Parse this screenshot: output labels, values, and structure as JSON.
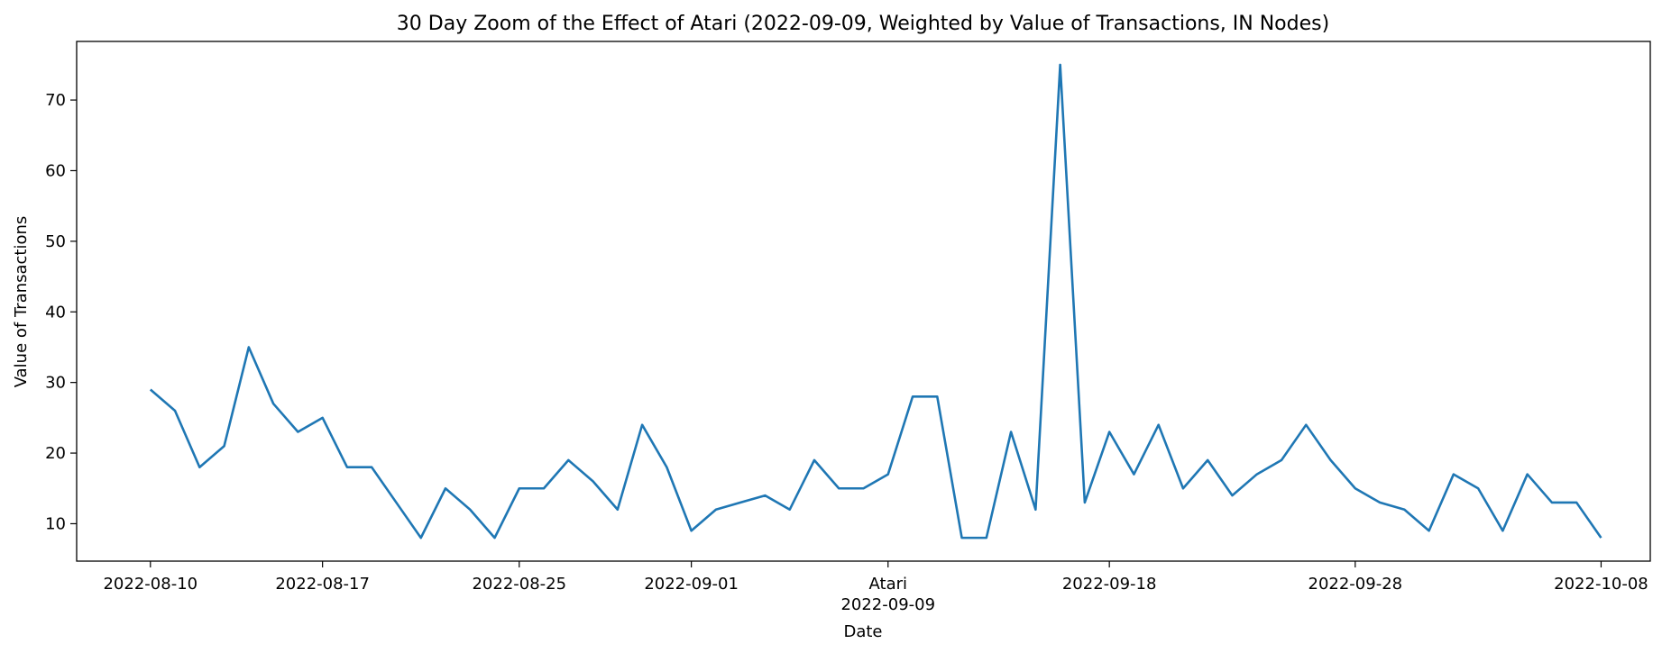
{
  "chart_data": {
    "type": "line",
    "title": "30 Day Zoom of the Effect of Atari (2022-09-09, Weighted by Value of Transactions, IN Nodes)",
    "xlabel": "Date",
    "ylabel": "Value of Transactions",
    "x_range": [
      "2022-08-07",
      "2022-10-10"
    ],
    "ylim": [
      4.7,
      78.3
    ],
    "y_ticks": [
      10,
      20,
      30,
      40,
      50,
      60,
      70
    ],
    "x_ticks": [
      {
        "date": "2022-08-10",
        "label": "2022-08-10"
      },
      {
        "date": "2022-08-17",
        "label": "2022-08-17"
      },
      {
        "date": "2022-08-25",
        "label": "2022-08-25"
      },
      {
        "date": "2022-09-01",
        "label": "2022-09-01"
      },
      {
        "date": "2022-09-09",
        "label": "Atari\n2022-09-09"
      },
      {
        "date": "2022-09-18",
        "label": "2022-09-18"
      },
      {
        "date": "2022-09-28",
        "label": "2022-09-28"
      },
      {
        "date": "2022-10-08",
        "label": "2022-10-08"
      }
    ],
    "grid": false,
    "line_color": "#1f77b4",
    "series": [
      {
        "x": [
          "2022-08-10",
          "2022-08-11",
          "2022-08-12",
          "2022-08-13",
          "2022-08-14",
          "2022-08-15",
          "2022-08-16",
          "2022-08-17",
          "2022-08-18",
          "2022-08-19",
          "2022-08-20",
          "2022-08-21",
          "2022-08-22",
          "2022-08-23",
          "2022-08-24",
          "2022-08-25",
          "2022-08-26",
          "2022-08-27",
          "2022-08-28",
          "2022-08-29",
          "2022-08-30",
          "2022-08-31",
          "2022-09-01",
          "2022-09-02",
          "2022-09-03",
          "2022-09-04",
          "2022-09-05",
          "2022-09-06",
          "2022-09-07",
          "2022-09-08",
          "2022-09-09",
          "2022-09-10",
          "2022-09-11",
          "2022-09-12",
          "2022-09-13",
          "2022-09-14",
          "2022-09-15",
          "2022-09-16",
          "2022-09-17",
          "2022-09-18",
          "2022-09-19",
          "2022-09-20",
          "2022-09-21",
          "2022-09-22",
          "2022-09-23",
          "2022-09-24",
          "2022-09-25",
          "2022-09-26",
          "2022-09-27",
          "2022-09-28",
          "2022-09-29",
          "2022-09-30",
          "2022-10-01",
          "2022-10-02",
          "2022-10-03",
          "2022-10-04",
          "2022-10-05",
          "2022-10-06",
          "2022-10-07",
          "2022-10-08"
        ],
        "values": [
          29,
          26,
          18,
          21,
          35,
          27,
          23,
          25,
          18,
          18,
          13,
          8,
          15,
          12,
          8,
          15,
          15,
          19,
          16,
          12,
          24,
          18,
          9,
          12,
          13,
          14,
          12,
          19,
          15,
          15,
          17,
          28,
          28,
          8,
          8,
          23,
          12,
          75,
          13,
          23,
          17,
          24,
          15,
          19,
          14,
          17,
          19,
          24,
          19,
          15,
          13,
          12,
          9,
          17,
          15,
          9,
          17,
          13,
          13,
          8
        ]
      }
    ]
  }
}
